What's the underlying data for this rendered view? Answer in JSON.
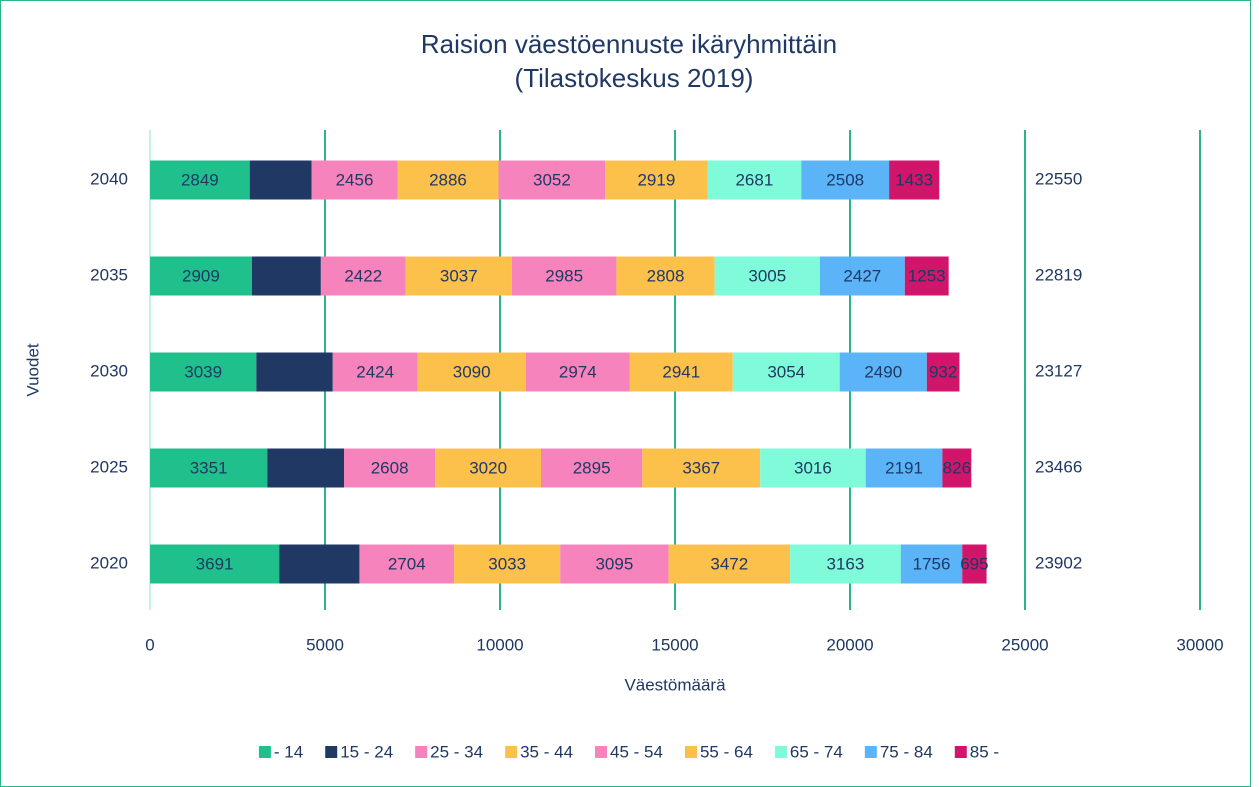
{
  "chart_data": {
    "type": "stacked_barh",
    "title": "Raision väestöennuste ikäryhmittäin",
    "subtitle": "(Tilastokeskus 2019)",
    "xlabel": "Väestömäärä",
    "ylabel": "Vuodet",
    "categories": [
      "2040",
      "2035",
      "2030",
      "2025",
      "2020"
    ],
    "series": [
      {
        "name": "- 14",
        "color": "#20c08c",
        "values": [
          2849,
          2909,
          3039,
          3351,
          3691
        ]
      },
      {
        "name": "15 - 24",
        "color": "#1f3864",
        "values": [
          1766,
          1973,
          2183,
          2192,
          2293
        ]
      },
      {
        "name": "25 - 34",
        "color": "#f783bd",
        "values": [
          2456,
          2422,
          2424,
          2608,
          2704
        ]
      },
      {
        "name": "35 - 44",
        "color": "#fcc14b",
        "values": [
          2886,
          3037,
          3090,
          3020,
          3033
        ]
      },
      {
        "name": "45 - 54",
        "color": "#f783bd",
        "values": [
          3052,
          2985,
          2974,
          2895,
          3095
        ]
      },
      {
        "name": "55 - 64",
        "color": "#fcc14b",
        "values": [
          2919,
          2808,
          2941,
          3367,
          3472
        ]
      },
      {
        "name": "65 - 74",
        "color": "#80fbd9",
        "values": [
          2681,
          3005,
          3054,
          3016,
          3163
        ]
      },
      {
        "name": "75 - 84",
        "color": "#5ab4f7",
        "values": [
          2508,
          2427,
          2490,
          2191,
          1756
        ]
      },
      {
        "name": "85 -",
        "color": "#d0156b",
        "values": [
          1433,
          1253,
          932,
          826,
          695
        ]
      }
    ],
    "totals": [
      22550,
      22819,
      23127,
      23466,
      23902
    ],
    "xlim": [
      0,
      30000
    ],
    "xticks": [
      0,
      5000,
      10000,
      15000,
      20000,
      25000,
      30000
    ],
    "grid": true,
    "grid_color": "#2bb58a",
    "legend": "bottom"
  }
}
